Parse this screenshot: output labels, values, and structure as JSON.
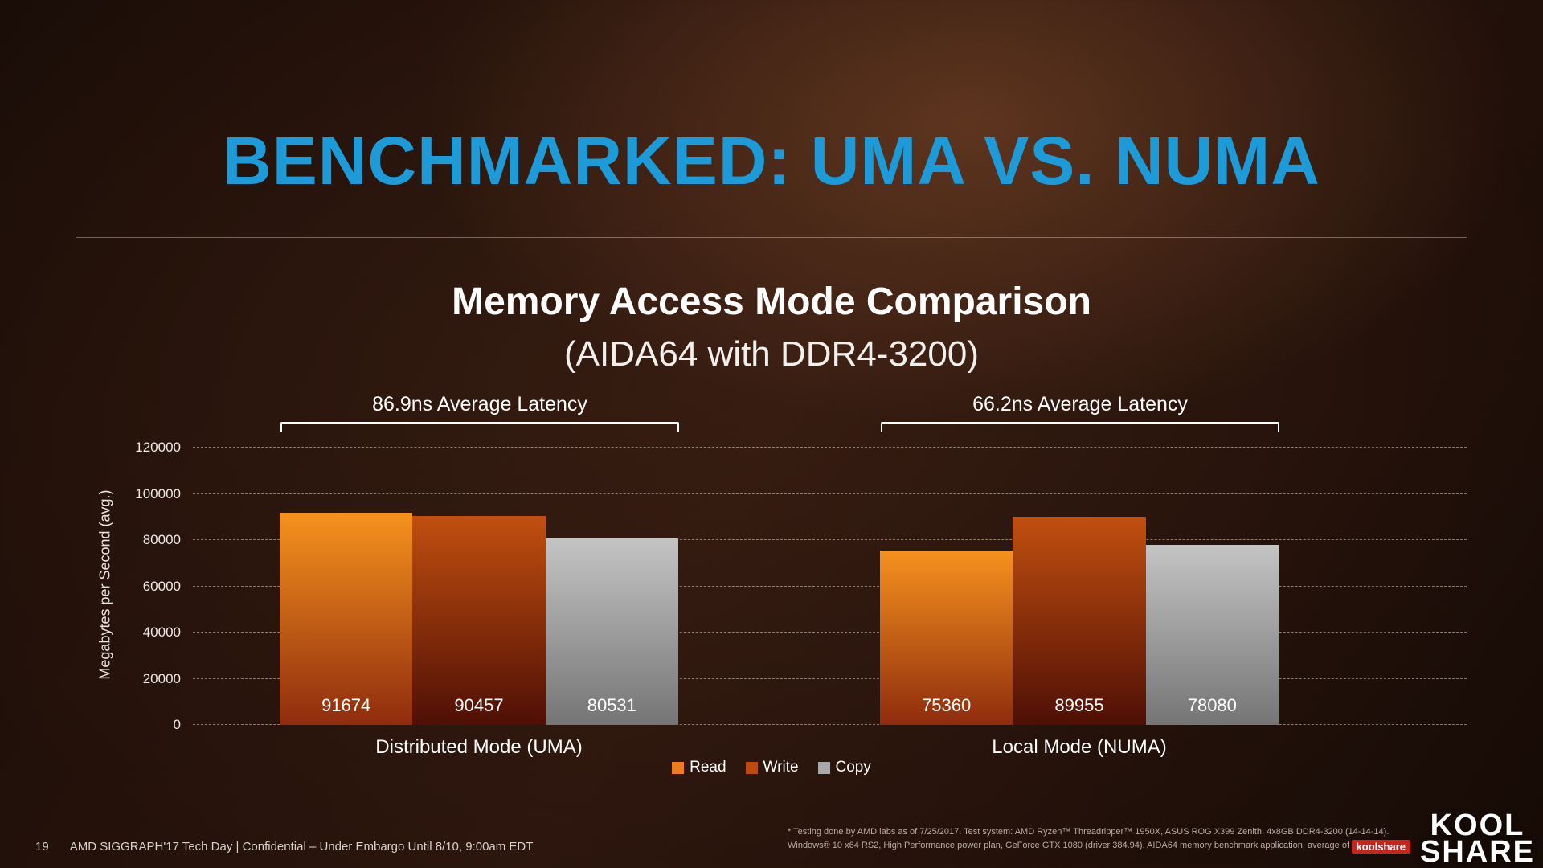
{
  "slide": {
    "title": "BENCHMARKED: UMA VS. NUMA",
    "accent_color": "#1d9bd8",
    "footer": {
      "page": "19",
      "text": "AMD SIGGRAPH'17 Tech Day  |  Confidential – Under Embargo Until 8/10, 9:00am EDT"
    },
    "footnote": {
      "line1": "* Testing done by AMD labs as of 7/25/2017. Test system: AMD Ryzen™ Threadripper™ 1950X, ASUS ROG X399 Zenith, 4x8GB DDR4-3200 (14-14-14).",
      "line2": "Windows® 10 x64 RS2, High Performance power plan, GeForce GTX 1080 (driver 384.94). AIDA64 memory benchmark application; average of"
    },
    "watermark": {
      "line1": "KOOL",
      "line2": "SHARE",
      "small": "koolshare"
    }
  },
  "chart_data": {
    "type": "bar",
    "title": "Memory Access Mode Comparison",
    "subtitle": "(AIDA64 with DDR4-3200)",
    "ylabel": "Megabytes per Second (avg.)",
    "ylim": [
      0,
      120000
    ],
    "yticks": [
      0,
      20000,
      40000,
      60000,
      80000,
      100000,
      120000
    ],
    "grid": "dashed-horizontal",
    "legend_position": "bottom",
    "categories": [
      "Distributed Mode (UMA)",
      "Local Mode (NUMA)"
    ],
    "series": [
      {
        "name": "Read",
        "values": [
          91674,
          75360
        ],
        "color_top": "#f6921e",
        "color_bottom": "#8f2c0d",
        "legend_color": "#ed7d1e"
      },
      {
        "name": "Write",
        "values": [
          90457,
          89955
        ],
        "color_top": "#c14f10",
        "color_bottom": "#4f0f05",
        "legend_color": "#bf4a10"
      },
      {
        "name": "Copy",
        "values": [
          80531,
          78080
        ],
        "color_top": "#c4c4c4",
        "color_bottom": "#757575",
        "legend_color": "#a9a9a9"
      }
    ],
    "annotations": [
      {
        "text": "86.9ns Average Latency",
        "target": "Distributed Mode (UMA)"
      },
      {
        "text": "66.2ns Average Latency",
        "target": "Local Mode (NUMA)"
      }
    ]
  }
}
